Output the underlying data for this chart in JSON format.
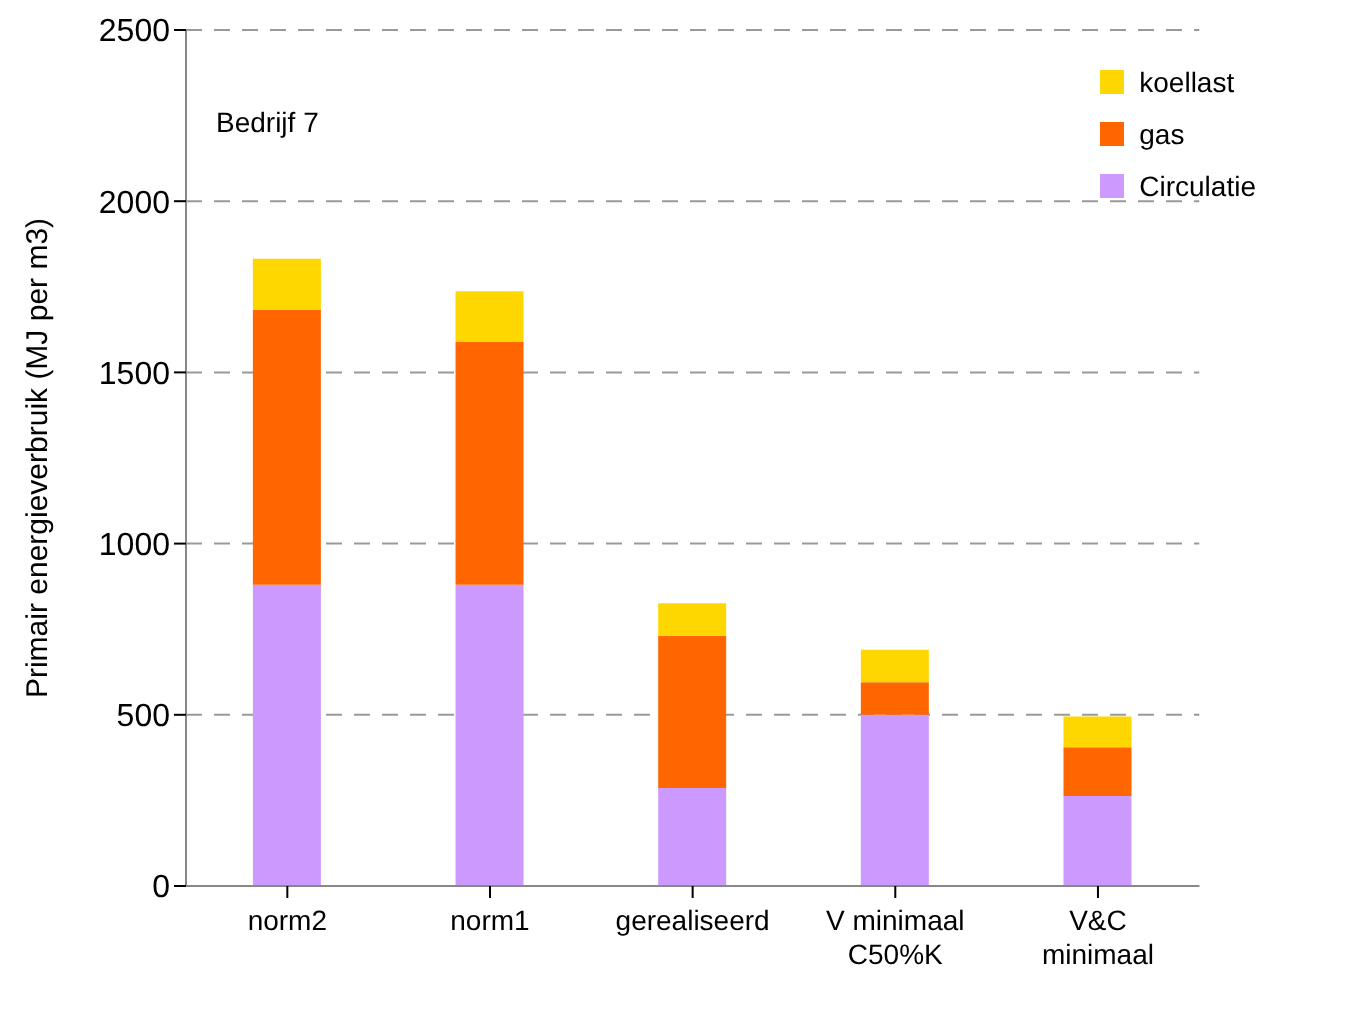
{
  "chart_data": {
    "type": "bar",
    "stacked": true,
    "ylabel": "Primair energieverbruik (MJ per m3)",
    "annotations": [
      "Bedrijf 7"
    ],
    "categories": [
      "norm2",
      "norm1",
      "gerealiseerd",
      "V minimaal\nC50%K",
      "V&C\nminimaal"
    ],
    "series": [
      {
        "name": "Circulatie",
        "color": "#cc99ff",
        "values": [
          880,
          880,
          286,
          500,
          263
        ]
      },
      {
        "name": "gas",
        "color": "#ff6600",
        "values": [
          804,
          709,
          445,
          95,
          142
        ]
      },
      {
        "name": "koellast",
        "color": "#ffd700",
        "values": [
          148,
          148,
          95,
          95,
          90
        ]
      }
    ],
    "ylim": [
      0,
      2500
    ],
    "yticks": [
      0,
      500,
      1000,
      1500,
      2000,
      2500
    ],
    "grid": "y",
    "legend": "top right"
  }
}
